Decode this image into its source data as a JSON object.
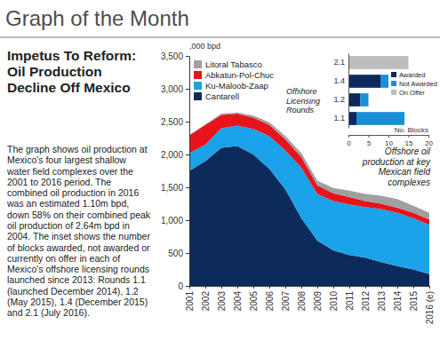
{
  "page": {
    "heading": "Graph of the Month",
    "title": "Impetus To Reform: Oil Production Decline Off Mexico",
    "body": "The graph shows oil production at Mexico's four largest shallow water field complexes over the 2001 to 2016 period. The combined oil production in 2016 was an estimated 1.10m bpd, down 58% on their combined peak oil production of 2.64m bpd in 2004. The inset shows the number of blocks awarded, not awarded or currently on offer in each of Mexico's offshore licensing rounds launched since 2013: Rounds 1.1 (launched December 2014), 1.2 (May 2015), 1.4 (December 2015) and 2.1 (July 2016)."
  },
  "chart_data": [
    {
      "type": "area",
      "stacked": true,
      "y_label": ",000 bpd",
      "annotation": "Offshore oil production at key Mexican field complexes",
      "categories": [
        "2001",
        "2002",
        "2003",
        "2004",
        "2005",
        "2006",
        "2007",
        "2008",
        "2009",
        "2010",
        "2011",
        "2012",
        "2013",
        "2014",
        "2015",
        "2016 (e)"
      ],
      "series": [
        {
          "name": "Cantarell",
          "color": "#0d2a5c",
          "values": [
            1750,
            1900,
            2100,
            2130,
            2000,
            1780,
            1470,
            1030,
            690,
            540,
            470,
            430,
            360,
            300,
            250,
            180
          ]
        },
        {
          "name": "Ku-Maloob-Zaap",
          "color": "#1aa3e8",
          "values": [
            270,
            250,
            300,
            310,
            390,
            500,
            590,
            770,
            710,
            750,
            770,
            770,
            810,
            810,
            780,
            750
          ]
        },
        {
          "name": "Abkatun-Pol-Chuc",
          "color": "#e8131b",
          "values": [
            270,
            300,
            200,
            180,
            170,
            170,
            170,
            160,
            130,
            120,
            110,
            90,
            80,
            80,
            80,
            80
          ]
        },
        {
          "name": "Litoral Tabasco",
          "color": "#a0a0a0",
          "values": [
            10,
            10,
            20,
            20,
            30,
            40,
            50,
            60,
            70,
            80,
            100,
            110,
            120,
            130,
            110,
            100
          ]
        }
      ],
      "ylim": [
        0,
        3500
      ],
      "yticks": [
        0,
        500,
        {
          "value": 1000,
          "label": "1,000"
        },
        {
          "value": 1500,
          "label": "1,500"
        },
        {
          "value": 2000,
          "label": "2,000"
        },
        {
          "value": 2500,
          "label": "2,500"
        },
        {
          "value": 3000,
          "label": "3,000"
        },
        {
          "value": 3500,
          "label": "3,500"
        }
      ],
      "legend": "top-left"
    },
    {
      "type": "bar",
      "orientation": "horizontal",
      "stacked": true,
      "title": "Offshore Licensing Rounds",
      "x_label": "No. Blocks",
      "categories": [
        "2.1",
        "1.4",
        "1.2",
        "1.1"
      ],
      "series": [
        {
          "name": "Awarded",
          "color": "#0d2a5c",
          "values": [
            0,
            8,
            3,
            2
          ]
        },
        {
          "name": "Not Awarded",
          "color": "#1a8fd6",
          "values": [
            0,
            2,
            2,
            12
          ]
        },
        {
          "name": "On Offer",
          "color": "#bdbdbd",
          "values": [
            15,
            0,
            0,
            0
          ]
        }
      ],
      "xlim": [
        0,
        20
      ],
      "xticks": [
        0,
        5,
        10,
        15,
        20
      ],
      "legend": "top-right"
    }
  ]
}
